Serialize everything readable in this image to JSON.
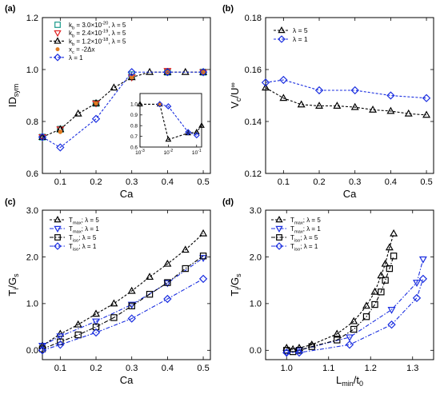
{
  "chart_data": [
    {
      "panel": "(a)",
      "type": "line",
      "xlabel": "Ca",
      "ylabel": "ID",
      "ylabel_sub": "sym",
      "xlim": [
        0.05,
        0.52
      ],
      "ylim": [
        0.6,
        1.2
      ],
      "xticks": [
        "0.1",
        "0.2",
        "0.3",
        "0.4",
        "0.5"
      ],
      "xtick_values": [
        0.1,
        0.2,
        0.3,
        0.4,
        0.5
      ],
      "yticks": [
        "0.6",
        "0.8",
        "1.0",
        "1.2"
      ],
      "ytick_values": [
        0.6,
        0.8,
        1.0,
        1.2
      ],
      "series": [
        {
          "name": "k_b = 3.0×10^-20, λ = 5",
          "legend": [
            "k",
            "b",
            " = 3.0×10",
            "-20",
            ", λ = 5"
          ],
          "marker": "square",
          "color": "#1a9a8a",
          "linestyle": "none",
          "x": [
            0.05,
            0.1,
            0.2,
            0.3,
            0.4,
            0.5
          ],
          "y": [
            0.74,
            0.77,
            0.87,
            0.98,
            0.99,
            0.99
          ]
        },
        {
          "name": "k_b = 2.4×10^-19, λ = 5",
          "legend": [
            "k",
            "b",
            " = 2.4×10",
            "-19",
            ", λ = 5"
          ],
          "marker": "triangle-down",
          "color": "#e02020",
          "linestyle": "none",
          "x": [
            0.05,
            0.1,
            0.2,
            0.3,
            0.4,
            0.5
          ],
          "y": [
            0.74,
            0.77,
            0.87,
            0.97,
            0.995,
            0.99
          ]
        },
        {
          "name": "k_b = 1.2×10^-18, λ = 5",
          "legend": [
            "k",
            "b",
            " = 1.2×10",
            "-18",
            ", λ = 5"
          ],
          "marker": "triangle-up",
          "color": "#000000",
          "linestyle": "dash",
          "x": [
            0.05,
            0.1,
            0.15,
            0.2,
            0.25,
            0.3,
            0.35,
            0.4,
            0.45,
            0.5
          ],
          "y": [
            0.74,
            0.77,
            0.83,
            0.87,
            0.93,
            0.97,
            0.99,
            0.99,
            0.99,
            0.99
          ]
        },
        {
          "name": "x_c = -2Δx",
          "legend": [
            "x",
            "c",
            " = -2Δx"
          ],
          "marker": "dot",
          "color": "#e07a20",
          "linestyle": "none",
          "x": [
            0.1,
            0.2,
            0.3,
            0.4,
            0.5
          ],
          "y": [
            0.76,
            0.87,
            0.97,
            0.99,
            0.99
          ]
        },
        {
          "name": "λ = 1",
          "legend": [
            "λ = 1"
          ],
          "marker": "diamond",
          "color": "#1a2ee0",
          "linestyle": "dash",
          "x": [
            0.05,
            0.1,
            0.2,
            0.3,
            0.4,
            0.5
          ],
          "y": [
            0.74,
            0.7,
            0.81,
            0.99,
            0.99,
            0.99
          ]
        }
      ],
      "inset": {
        "xscale": "log",
        "xlim": [
          0.001,
          0.15
        ],
        "ylim": [
          0.6,
          1.1
        ],
        "xticks": [
          "10",
          "10",
          "10"
        ],
        "xtick_exps": [
          "-3",
          "-2",
          "-1"
        ],
        "xtick_values": [
          0.001,
          0.01,
          0.1
        ],
        "yticks": [
          "0.6",
          "0.7",
          "0.8",
          "0.9",
          "1.0"
        ],
        "ytick_values": [
          0.6,
          0.7,
          0.8,
          0.9,
          1.0
        ],
        "series": [
          {
            "marker": "triangle-up",
            "color": "#000000",
            "linestyle": "dash",
            "x": [
              0.001,
              0.005,
              0.01,
              0.05,
              0.1,
              0.15
            ],
            "y": [
              1.0,
              1.0,
              0.67,
              0.73,
              0.74,
              0.8
            ]
          },
          {
            "marker": "diamond",
            "color": "#1a2ee0",
            "linestyle": "dash",
            "x": [
              0.005,
              0.01,
              0.05,
              0.1
            ],
            "y": [
              1.0,
              0.98,
              0.74,
              0.71
            ]
          },
          {
            "marker": "dot",
            "color": "#e07a20",
            "linestyle": "none",
            "x": [
              0.005
            ],
            "y": [
              1.0
            ]
          }
        ]
      }
    },
    {
      "panel": "(b)",
      "type": "line",
      "xlabel": "Ca",
      "ylabel": "V",
      "ylabel_sub": "c",
      "ylabel_rest": "/U",
      "ylabel_sup": "∞",
      "xlim": [
        0.05,
        0.52
      ],
      "ylim": [
        0.12,
        0.18
      ],
      "xticks": [
        "0.1",
        "0.2",
        "0.3",
        "0.4",
        "0.5"
      ],
      "xtick_values": [
        0.1,
        0.2,
        0.3,
        0.4,
        0.5
      ],
      "yticks": [
        "0.12",
        "0.14",
        "0.16",
        "0.18"
      ],
      "ytick_values": [
        0.12,
        0.14,
        0.16,
        0.18
      ],
      "series": [
        {
          "name": "λ = 5",
          "legend": [
            "λ = 5"
          ],
          "marker": "triangle-up",
          "color": "#000000",
          "linestyle": "dash",
          "x": [
            0.05,
            0.1,
            0.15,
            0.2,
            0.25,
            0.3,
            0.35,
            0.4,
            0.45,
            0.5
          ],
          "y": [
            0.153,
            0.149,
            0.1465,
            0.146,
            0.146,
            0.1455,
            0.1445,
            0.144,
            0.143,
            0.1425
          ]
        },
        {
          "name": "λ = 1",
          "legend": [
            "λ = 1"
          ],
          "marker": "diamond",
          "color": "#1a2ee0",
          "linestyle": "dash",
          "x": [
            0.05,
            0.1,
            0.2,
            0.3,
            0.4,
            0.5
          ],
          "y": [
            0.155,
            0.156,
            0.152,
            0.152,
            0.15,
            0.149
          ]
        }
      ]
    },
    {
      "panel": "(c)",
      "type": "line",
      "xlabel": "Ca",
      "ylabel": "T",
      "ylabel_sub": "i",
      "ylabel_rest": "/G",
      "ylabel_sub2": "s",
      "xlim": [
        0.05,
        0.52
      ],
      "ylim": [
        -0.2,
        3.0
      ],
      "xticks": [
        "0.1",
        "0.2",
        "0.3",
        "0.4",
        "0.5"
      ],
      "xtick_values": [
        0.1,
        0.2,
        0.3,
        0.4,
        0.5
      ],
      "yticks": [
        "0.0",
        "1.0",
        "2.0",
        "3.0"
      ],
      "ytick_values": [
        0.0,
        1.0,
        2.0,
        3.0
      ],
      "series": [
        {
          "name": "T_max; λ = 5",
          "legend": [
            "T",
            "max",
            "; λ = 5"
          ],
          "marker": "triangle-up",
          "color": "#000000",
          "linestyle": "dash",
          "x": [
            0.05,
            0.1,
            0.15,
            0.2,
            0.25,
            0.3,
            0.35,
            0.4,
            0.45,
            0.5
          ],
          "y": [
            0.1,
            0.35,
            0.55,
            0.78,
            1.0,
            1.27,
            1.57,
            1.85,
            2.15,
            2.5
          ]
        },
        {
          "name": "T_max; λ = 1",
          "legend": [
            "T",
            "max",
            "; λ = 1"
          ],
          "marker": "triangle-down",
          "color": "#1a2ee0",
          "linestyle": "dashdot",
          "x": [
            0.05,
            0.1,
            0.2,
            0.3,
            0.4,
            0.5
          ],
          "y": [
            0.1,
            0.3,
            0.62,
            0.98,
            1.44,
            1.98
          ]
        },
        {
          "name": "T_iso; λ = 5",
          "legend": [
            "T",
            "iso",
            "; λ = 5"
          ],
          "marker": "square",
          "color": "#000000",
          "linestyle": "dashdot",
          "x": [
            0.05,
            0.1,
            0.15,
            0.2,
            0.25,
            0.3,
            0.35,
            0.4,
            0.45,
            0.5
          ],
          "y": [
            0.03,
            0.18,
            0.33,
            0.5,
            0.7,
            0.95,
            1.2,
            1.45,
            1.75,
            2.02
          ]
        },
        {
          "name": "T_iso; λ = 1",
          "legend": [
            "T",
            "iso",
            "; λ = 1"
          ],
          "marker": "diamond",
          "color": "#1a2ee0",
          "linestyle": "dashdot",
          "x": [
            0.05,
            0.1,
            0.2,
            0.3,
            0.4,
            0.5
          ],
          "y": [
            0.0,
            0.12,
            0.38,
            0.68,
            1.1,
            1.53
          ]
        }
      ]
    },
    {
      "panel": "(d)",
      "type": "line",
      "xlabel": "L",
      "xlabel_sub": "min",
      "xlabel_rest": "/t",
      "xlabel_sub2": "0",
      "ylabel": "T",
      "ylabel_sub": "i",
      "ylabel_rest": "/G",
      "ylabel_sub2": "s",
      "xlim": [
        0.95,
        1.35
      ],
      "ylim": [
        -0.2,
        3.0
      ],
      "xticks": [
        "1.0",
        "1.1",
        "1.2",
        "1.3"
      ],
      "xtick_values": [
        1.0,
        1.1,
        1.2,
        1.3
      ],
      "yticks": [
        "0.0",
        "1.0",
        "2.0",
        "3.0"
      ],
      "ytick_values": [
        0.0,
        1.0,
        2.0,
        3.0
      ],
      "series": [
        {
          "name": "T_max; λ = 5",
          "legend": [
            "T",
            "max",
            "; λ = 5"
          ],
          "marker": "triangle-up",
          "color": "#000000",
          "linestyle": "dash",
          "x": [
            1.0,
            1.015,
            1.03,
            1.06,
            1.12,
            1.16,
            1.19,
            1.21,
            1.225,
            1.235,
            1.245,
            1.255
          ],
          "y": [
            0.05,
            0.02,
            0.05,
            0.12,
            0.35,
            0.62,
            0.95,
            1.25,
            1.6,
            1.85,
            2.2,
            2.5
          ]
        },
        {
          "name": "T_max; λ = 1",
          "legend": [
            "T",
            "max",
            "; λ = 1"
          ],
          "marker": "triangle-down",
          "color": "#1a2ee0",
          "linestyle": "dashdot",
          "x": [
            1.0,
            1.03,
            1.15,
            1.25,
            1.31,
            1.325
          ],
          "y": [
            -0.05,
            0.0,
            0.28,
            0.87,
            1.45,
            1.95
          ]
        },
        {
          "name": "T_iso; λ = 5",
          "legend": [
            "T",
            "iso",
            "; λ = 5"
          ],
          "marker": "square",
          "color": "#000000",
          "linestyle": "dashdot",
          "x": [
            1.0,
            1.015,
            1.03,
            1.06,
            1.12,
            1.16,
            1.19,
            1.21,
            1.225,
            1.235,
            1.245,
            1.255
          ],
          "y": [
            0.0,
            -0.03,
            0.0,
            0.08,
            0.22,
            0.45,
            0.72,
            0.98,
            1.25,
            1.5,
            1.75,
            2.02
          ]
        },
        {
          "name": "T_iso; λ = 1",
          "legend": [
            "T",
            "iso",
            "; λ = 1"
          ],
          "marker": "diamond",
          "color": "#1a2ee0",
          "linestyle": "dashdot",
          "x": [
            1.0,
            1.03,
            1.15,
            1.25,
            1.31,
            1.325
          ],
          "y": [
            -0.05,
            -0.05,
            0.12,
            0.55,
            1.12,
            1.53
          ]
        }
      ]
    }
  ]
}
